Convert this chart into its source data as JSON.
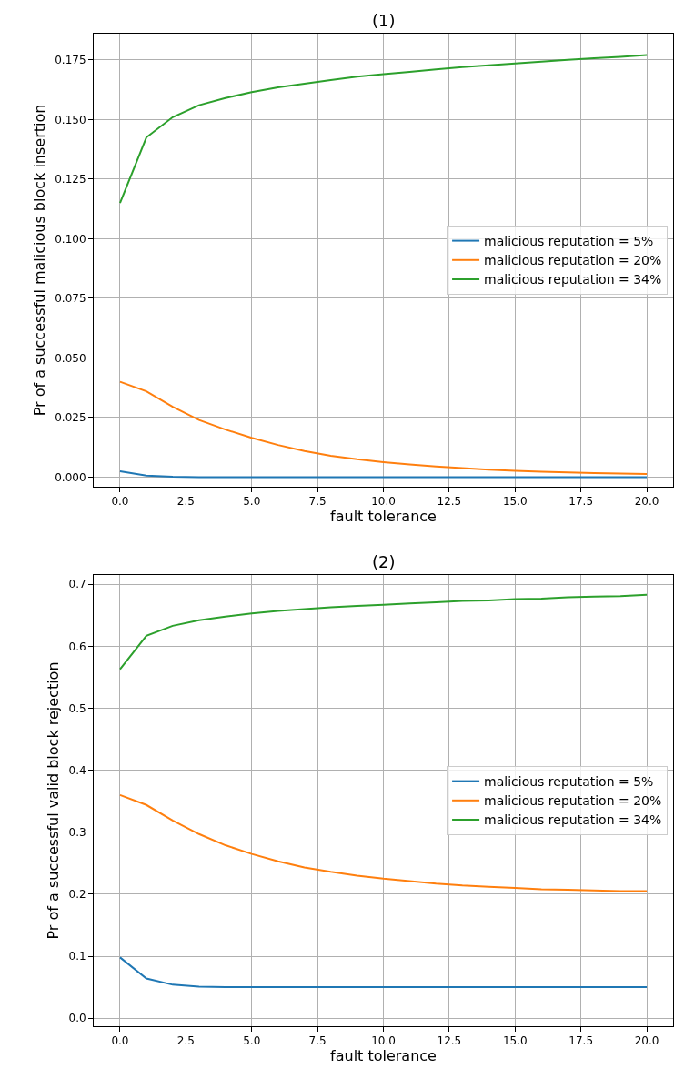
{
  "chart_data": [
    {
      "type": "line",
      "title": "(1)",
      "xlabel": "fault tolerance",
      "ylabel": "Pr of a successful malicious block insertion",
      "x": [
        0,
        1,
        2,
        3,
        4,
        5,
        6,
        7,
        8,
        9,
        10,
        11,
        12,
        13,
        14,
        15,
        16,
        17,
        18,
        19,
        20
      ],
      "series": [
        {
          "name": "malicious reputation = 5%",
          "color": "#1f77b4",
          "values": [
            0.0025,
            0.0007,
            0.0002,
            0.0,
            0.0,
            0.0,
            0.0,
            0.0,
            0.0,
            0.0,
            0.0,
            0.0,
            0.0,
            0.0,
            0.0,
            0.0,
            0.0,
            0.0,
            0.0,
            0.0,
            0.0
          ]
        },
        {
          "name": "malicious reputation = 20%",
          "color": "#ff7f0e",
          "values": [
            0.04,
            0.036,
            0.0295,
            0.024,
            0.02,
            0.0165,
            0.0135,
            0.011,
            0.009,
            0.0075,
            0.0063,
            0.0053,
            0.0045,
            0.0038,
            0.0032,
            0.0027,
            0.0023,
            0.002,
            0.0017,
            0.0015,
            0.0013
          ]
        },
        {
          "name": "malicious reputation = 34%",
          "color": "#2ca02c",
          "values": [
            0.115,
            0.1425,
            0.151,
            0.156,
            0.159,
            0.1615,
            0.1635,
            0.165,
            0.1665,
            0.168,
            0.169,
            0.17,
            0.171,
            0.172,
            0.1727,
            0.1735,
            0.1743,
            0.175,
            0.1757,
            0.1763,
            0.177
          ]
        }
      ],
      "xlim": [
        -1,
        21
      ],
      "ylim": [
        -0.004,
        0.186
      ],
      "xticks": [
        {
          "value": 0,
          "label": "0.0"
        },
        {
          "value": 2.5,
          "label": "2.5"
        },
        {
          "value": 5,
          "label": "5.0"
        },
        {
          "value": 7.5,
          "label": "7.5"
        },
        {
          "value": 10,
          "label": "10.0"
        },
        {
          "value": 12.5,
          "label": "12.5"
        },
        {
          "value": 15,
          "label": "15.0"
        },
        {
          "value": 17.5,
          "label": "17.5"
        },
        {
          "value": 20,
          "label": "20.0"
        }
      ],
      "yticks": [
        {
          "value": 0,
          "label": "0.000"
        },
        {
          "value": 0.025,
          "label": "0.025"
        },
        {
          "value": 0.05,
          "label": "0.050"
        },
        {
          "value": 0.075,
          "label": "0.075"
        },
        {
          "value": 0.1,
          "label": "0.100"
        },
        {
          "value": 0.125,
          "label": "0.125"
        },
        {
          "value": 0.15,
          "label": "0.150"
        },
        {
          "value": 0.175,
          "label": "0.175"
        }
      ],
      "grid": true,
      "legend": "right",
      "marker": "none",
      "line_style": "solid"
    },
    {
      "type": "line",
      "title": "(2)",
      "xlabel": "fault tolerance",
      "ylabel": "Pr of a successful valid block rejection",
      "x": [
        0,
        1,
        2,
        3,
        4,
        5,
        6,
        7,
        8,
        9,
        10,
        11,
        12,
        13,
        14,
        15,
        16,
        17,
        18,
        19,
        20
      ],
      "series": [
        {
          "name": "malicious reputation = 5%",
          "color": "#1f77b4",
          "values": [
            0.098,
            0.064,
            0.054,
            0.051,
            0.05,
            0.05,
            0.05,
            0.05,
            0.05,
            0.05,
            0.05,
            0.05,
            0.05,
            0.05,
            0.05,
            0.05,
            0.05,
            0.05,
            0.05,
            0.05,
            0.05
          ]
        },
        {
          "name": "malicious reputation = 20%",
          "color": "#ff7f0e",
          "values": [
            0.36,
            0.344,
            0.319,
            0.297,
            0.279,
            0.265,
            0.253,
            0.243,
            0.236,
            0.23,
            0.225,
            0.221,
            0.217,
            0.214,
            0.212,
            0.21,
            0.208,
            0.207,
            0.206,
            0.205,
            0.205
          ]
        },
        {
          "name": "malicious reputation = 34%",
          "color": "#2ca02c",
          "values": [
            0.563,
            0.617,
            0.633,
            0.642,
            0.648,
            0.653,
            0.657,
            0.66,
            0.663,
            0.665,
            0.667,
            0.669,
            0.671,
            0.673,
            0.674,
            0.676,
            0.677,
            0.679,
            0.68,
            0.681,
            0.683
          ]
        }
      ],
      "xlim": [
        -1,
        21
      ],
      "ylim": [
        -0.013,
        0.715
      ],
      "xticks": [
        {
          "value": 0,
          "label": "0.0"
        },
        {
          "value": 2.5,
          "label": "2.5"
        },
        {
          "value": 5,
          "label": "5.0"
        },
        {
          "value": 7.5,
          "label": "7.5"
        },
        {
          "value": 10,
          "label": "10.0"
        },
        {
          "value": 12.5,
          "label": "12.5"
        },
        {
          "value": 15,
          "label": "15.0"
        },
        {
          "value": 17.5,
          "label": "17.5"
        },
        {
          "value": 20,
          "label": "20.0"
        }
      ],
      "yticks": [
        {
          "value": 0,
          "label": "0.0"
        },
        {
          "value": 0.1,
          "label": "0.1"
        },
        {
          "value": 0.2,
          "label": "0.2"
        },
        {
          "value": 0.3,
          "label": "0.3"
        },
        {
          "value": 0.4,
          "label": "0.4"
        },
        {
          "value": 0.5,
          "label": "0.5"
        },
        {
          "value": 0.6,
          "label": "0.6"
        },
        {
          "value": 0.7,
          "label": "0.7"
        }
      ],
      "grid": true,
      "legend": "right",
      "marker": "none",
      "line_style": "solid"
    }
  ]
}
